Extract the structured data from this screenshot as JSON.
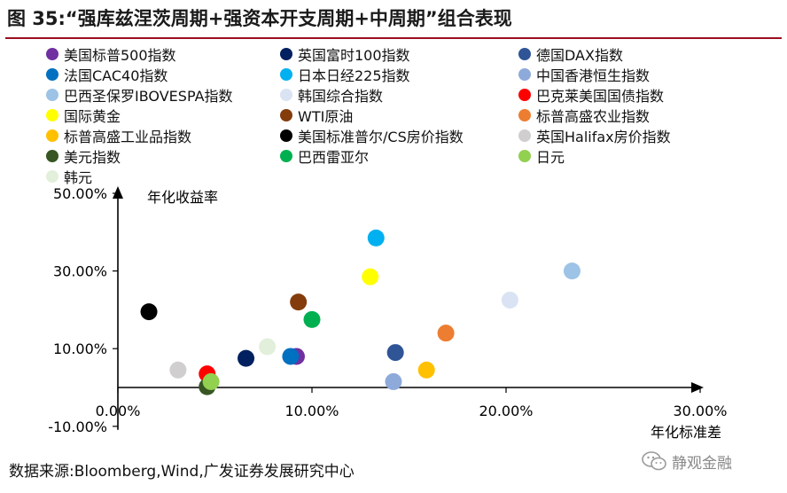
{
  "title": "图 35:“强库兹涅茨周期+强资本开支周期+中周期”组合表现",
  "source": "数据来源:Bloomberg,Wind,广发证券发展研究中心",
  "watermark": "静观金融",
  "chart_data": {
    "type": "scatter",
    "title": "",
    "xlabel": "年化标准差",
    "ylabel": "年化收益率",
    "xlim": [
      0,
      30
    ],
    "ylim": [
      -10,
      50
    ],
    "xticks": [
      0,
      10,
      20,
      30
    ],
    "yticks": [
      -10,
      10,
      30,
      50
    ],
    "xtick_labels": [
      "0.00%",
      "10.00%",
      "20.00%",
      "30.00%"
    ],
    "ytick_labels": [
      "-10.00%",
      "10.00%",
      "30.00%",
      "50.00%"
    ],
    "grid": false,
    "legend_position": "top",
    "series": [
      {
        "name": "美国标普500指数",
        "color": "#7030a0",
        "x": 9.2,
        "y": 8.0
      },
      {
        "name": "英国富时100指数",
        "color": "#002060",
        "x": 6.6,
        "y": 7.5
      },
      {
        "name": "德国DAX指数",
        "color": "#2f5597",
        "x": 14.3,
        "y": 9.0
      },
      {
        "name": "法国CAC40指数",
        "color": "#0070c0",
        "x": 8.9,
        "y": 8.0
      },
      {
        "name": "日本日经225指数",
        "color": "#00b0f0",
        "x": 13.3,
        "y": 38.5
      },
      {
        "name": "中国香港恒生指数",
        "color": "#8eaadb",
        "x": 14.2,
        "y": 1.5
      },
      {
        "name": "巴西圣保罗IBOVESPA指数",
        "color": "#9dc3e6",
        "x": 23.4,
        "y": 30.0
      },
      {
        "name": "韩国综合指数",
        "color": "#dae3f3",
        "x": 20.2,
        "y": 22.5
      },
      {
        "name": "巴克莱美国国债指数",
        "color": "#ff0000",
        "x": 4.6,
        "y": 3.5
      },
      {
        "name": "国际黄金",
        "color": "#ffff00",
        "x": 13.0,
        "y": 28.5
      },
      {
        "name": "WTI原油",
        "color": "#843c0c",
        "x": 9.3,
        "y": 22.0
      },
      {
        "name": "标普高盛农业指数",
        "color": "#ed7d31",
        "x": 16.9,
        "y": 14.0
      },
      {
        "name": "标普高盛工业品指数",
        "color": "#ffc000",
        "x": 15.9,
        "y": 4.5
      },
      {
        "name": "美国标准普尔/CS房价指数",
        "color": "#000000",
        "x": 1.6,
        "y": 19.5
      },
      {
        "name": "英国Halifax房价指数",
        "color": "#d0cece",
        "x": 3.1,
        "y": 4.5
      },
      {
        "name": "美元指数",
        "color": "#375623",
        "x": 4.6,
        "y": 0.2
      },
      {
        "name": "巴西雷亚尔",
        "color": "#00b050",
        "x": 10.0,
        "y": 17.5
      },
      {
        "name": "日元",
        "color": "#92d050",
        "x": 4.8,
        "y": 1.5
      },
      {
        "name": "韩元",
        "color": "#e2efda",
        "x": 7.7,
        "y": 10.5
      }
    ]
  }
}
